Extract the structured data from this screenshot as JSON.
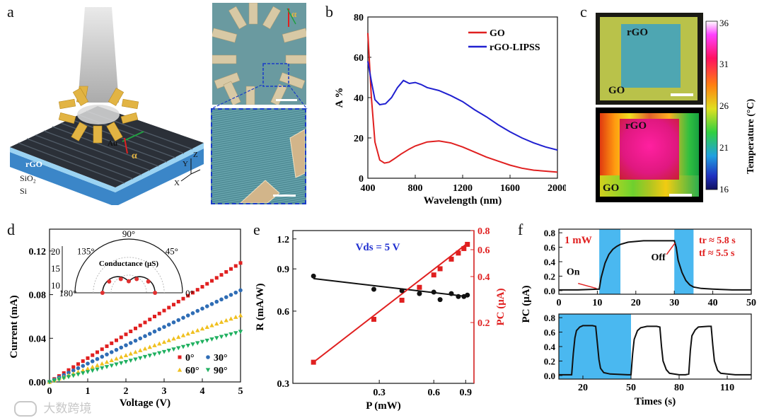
{
  "panels": {
    "a": {
      "letter": "a",
      "labels": {
        "au": "Au",
        "alpha": "α",
        "rgo": "rGO",
        "sio2": "SiO₂",
        "si": "Si",
        "x": "X",
        "y": "Y",
        "z": "Z",
        "alpha2": "α"
      }
    },
    "b": {
      "letter": "b"
    },
    "c": {
      "letter": "c",
      "top_rgo": "rGO",
      "top_go": "GO",
      "bot_rgo": "rGO",
      "bot_go": "GO",
      "colorbar": {
        "label": "Temperature (°C)",
        "ticks": [
          "36",
          "31",
          "26",
          "21",
          "16"
        ]
      }
    },
    "d": {
      "letter": "d"
    },
    "e": {
      "letter": "e"
    },
    "f": {
      "letter": "f"
    }
  },
  "watermark": "大数跨境",
  "chart_data": [
    {
      "id": "b",
      "type": "line",
      "xlabel": "Wavelength (nm)",
      "ylabel": "A %",
      "xlim": [
        400,
        2000
      ],
      "ylim": [
        0,
        80
      ],
      "xticks": [
        "400",
        "800",
        "1200",
        "1600",
        "2000"
      ],
      "yticks": [
        "0",
        "20",
        "40",
        "60",
        "80"
      ],
      "legend": "top-right",
      "series": [
        {
          "name": "GO",
          "color": "#e02020",
          "x": [
            400,
            430,
            460,
            500,
            540,
            580,
            620,
            680,
            750,
            800,
            850,
            900,
            1000,
            1100,
            1200,
            1300,
            1400,
            1500,
            1600,
            1700,
            1800,
            1900,
            2000
          ],
          "y": [
            72,
            40,
            18,
            9,
            7.5,
            8,
            9.5,
            12,
            14.5,
            16,
            17,
            18,
            18.5,
            17.5,
            15.5,
            13,
            10.5,
            8.5,
            6.5,
            5,
            4,
            3.5,
            3
          ]
        },
        {
          "name": "rGO-LIPSS",
          "color": "#2020d0",
          "x": [
            400,
            430,
            460,
            500,
            550,
            600,
            650,
            700,
            750,
            800,
            850,
            900,
            1000,
            1100,
            1200,
            1300,
            1400,
            1500,
            1600,
            1700,
            1800,
            1900,
            2000
          ],
          "y": [
            58,
            48,
            39,
            36.5,
            37,
            40,
            45,
            48.5,
            47,
            47.5,
            46.5,
            45,
            43.5,
            41,
            38,
            34,
            30.5,
            26.5,
            23,
            20,
            17.5,
            15.5,
            14
          ]
        }
      ]
    },
    {
      "id": "d",
      "type": "scatter",
      "xlabel": "Voltage (V)",
      "ylabel": "Current (mA)",
      "xlim": [
        0,
        5
      ],
      "ylim": [
        0,
        0.14
      ],
      "xticks": [
        "0",
        "1",
        "2",
        "3",
        "4",
        "5"
      ],
      "yticks": [
        "0.00",
        "0.04",
        "0.08",
        "0.12"
      ],
      "legend": "bottom-right",
      "series": [
        {
          "name": "0°",
          "color": "#e02020",
          "marker": "square",
          "slope": 0.0218
        },
        {
          "name": "30°",
          "color": "#2f6db5",
          "marker": "circle",
          "slope": 0.0168
        },
        {
          "name": "60°",
          "color": "#f0c020",
          "marker": "triangle-up",
          "slope": 0.0122
        },
        {
          "name": "90°",
          "color": "#20b060",
          "marker": "triangle-down",
          "slope": 0.0092
        }
      ],
      "inset": {
        "type": "polar",
        "title": "Conductance (μS)",
        "angle_labels": [
          "180°",
          "135°",
          "90°",
          "45°",
          "0°"
        ],
        "radial_ticks": [
          "10",
          "15",
          "20"
        ],
        "points": [
          {
            "angle": 0,
            "r": 21.5
          },
          {
            "angle": 30,
            "r": 18.5
          },
          {
            "angle": 60,
            "r": 13
          },
          {
            "angle": 90,
            "r": 9.5
          },
          {
            "angle": 120,
            "r": 13
          },
          {
            "angle": 150,
            "r": 18.5
          },
          {
            "angle": 180,
            "r": 21.5
          }
        ]
      }
    },
    {
      "id": "e",
      "type": "scatter",
      "xlabel": "P (mW)",
      "ylabel": "R (mA/W)",
      "ylabel_right": "PC (μA)",
      "annotation": "Vds = 5 V",
      "xticks": [
        "0.3",
        "0.6",
        "0.9"
      ],
      "yticks_left": [
        "0.3",
        "0.6",
        "0.9",
        "1.2"
      ],
      "yticks_right": [
        "0.2",
        "0.4",
        "0.6",
        "0.8"
      ],
      "series": [
        {
          "name": "R",
          "color": "#111111",
          "x": [
            0.13,
            0.28,
            0.4,
            0.5,
            0.6,
            0.65,
            0.75,
            0.82,
            0.88,
            0.92
          ],
          "y": [
            0.84,
            0.74,
            0.73,
            0.71,
            0.72,
            0.67,
            0.71,
            0.69,
            0.69,
            0.7
          ]
        },
        {
          "name": "PC",
          "color": "#e02020",
          "x": [
            0.13,
            0.28,
            0.4,
            0.5,
            0.6,
            0.65,
            0.75,
            0.82,
            0.88,
            0.92
          ],
          "y": [
            0.11,
            0.21,
            0.28,
            0.34,
            0.41,
            0.45,
            0.52,
            0.57,
            0.61,
            0.65
          ]
        }
      ]
    },
    {
      "id": "f-top",
      "type": "line",
      "ylabel": "PC (μA)",
      "annotation_power": "1 mW",
      "annotation_tr": "tr ≈ 5.8 s",
      "annotation_tf": "tf ≈ 5.5 s",
      "on_label": "On",
      "off_label": "Off",
      "xlim": [
        0,
        50
      ],
      "ylim": [
        -0.05,
        0.85
      ],
      "xticks": [
        "0",
        "10",
        "20",
        "30",
        "40",
        "50"
      ],
      "yticks": [
        "0.0",
        "0.2",
        "0.4",
        "0.6",
        "0.8"
      ],
      "light_on": [
        [
          10.5,
          16
        ],
        [
          30,
          35
        ]
      ],
      "series": [
        {
          "name": "PC",
          "color": "#111111",
          "x": [
            0,
            5,
            10.5,
            11,
            12,
            13,
            14,
            15,
            16,
            18,
            20,
            22,
            25,
            28,
            30,
            30.5,
            31,
            32,
            33,
            34,
            35,
            37,
            40,
            45,
            50
          ],
          "y": [
            0.01,
            0.01,
            0.02,
            0.18,
            0.38,
            0.5,
            0.57,
            0.61,
            0.64,
            0.67,
            0.68,
            0.69,
            0.69,
            0.69,
            0.69,
            0.6,
            0.42,
            0.25,
            0.14,
            0.08,
            0.05,
            0.03,
            0.02,
            0.01,
            0.01
          ]
        }
      ]
    },
    {
      "id": "f-bottom",
      "type": "line",
      "xlabel": "Times (s)",
      "xlim": [
        5,
        125
      ],
      "ylim": [
        -0.05,
        0.85
      ],
      "xticks": [
        "20",
        "50",
        "80",
        "110"
      ],
      "yticks": [
        "0.0",
        "0.2",
        "0.4",
        "0.6",
        "0.8"
      ],
      "light_on": [
        [
          5,
          50
        ]
      ],
      "series": [
        {
          "name": "PC",
          "color": "#111111",
          "x": [
            5,
            13,
            14,
            15,
            16,
            18,
            20,
            22,
            26,
            28,
            29,
            30,
            31,
            33,
            37,
            48,
            50,
            51,
            52,
            54,
            56,
            60,
            66,
            68,
            69,
            70,
            72,
            74,
            80,
            84,
            86,
            87,
            88,
            90,
            92,
            98,
            100,
            101,
            102,
            104,
            106,
            110,
            115,
            125
          ],
          "y": [
            0.01,
            0.01,
            0.3,
            0.52,
            0.62,
            0.67,
            0.69,
            0.69,
            0.69,
            0.68,
            0.45,
            0.22,
            0.1,
            0.04,
            0.02,
            0.01,
            0.01,
            0.3,
            0.5,
            0.62,
            0.66,
            0.68,
            0.68,
            0.67,
            0.4,
            0.2,
            0.08,
            0.03,
            0.01,
            0.01,
            0.02,
            0.35,
            0.55,
            0.63,
            0.67,
            0.68,
            0.68,
            0.42,
            0.2,
            0.07,
            0.03,
            0.02,
            0.01,
            0.01
          ]
        }
      ]
    }
  ]
}
